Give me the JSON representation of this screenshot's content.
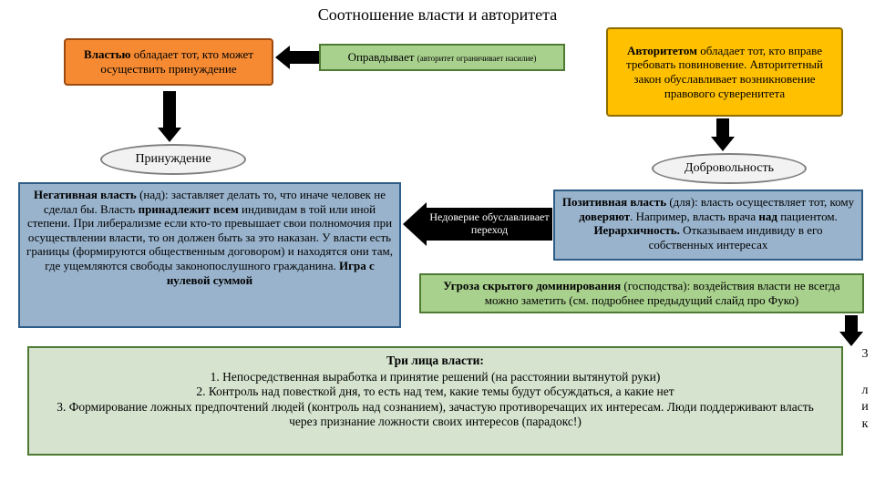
{
  "title": "Соотношение власти и авторитета",
  "colors": {
    "orange_fill": "#f58a33",
    "orange_border": "#9c4a0f",
    "yellow_fill": "#ffc000",
    "yellow_border": "#8f6b00",
    "green_fill": "#a9d18e",
    "green_border": "#4f7a34",
    "green_text_fill": "#d5e3cf",
    "blue_fill": "#99b3cc",
    "blue_border": "#2e5e87",
    "ellipse_fill": "#f2f2f2",
    "ellipse_border": "#7f7f7f",
    "arrow": "#000000"
  },
  "boxes": {
    "power": "Властью обладает тот, кто может осуществить принуждение",
    "authority": "Авторитетом обладает тот, кто вправе требовать повиновение. Авторитетный закон обуславливает возникновение правового суверенитета",
    "justify_prefix": "Оправдывает ",
    "justify_note": "(авторитет ограничивает насилие)",
    "coercion": "Принуждение",
    "voluntariness": "Добровольность",
    "negative": "Негативная власть (над): заставляет делать то, что иначе человек не сделал бы. Власть принадлежит всем индивидам в той или иной степени. При либерализме если кто-то превышает свои полномочия при осуществлении власти, то он должен быть за это наказан. У власти есть границы (формируются общественным договором) и находятся они там, где ущемляются свободы законопослушного гражданина. Игра с нулевой суммой",
    "positive": "Позитивная власть (для): власть осуществляет тот, кому доверяют. Например, власть врача над пациентом. Иерархичность. Отказываем индивиду в его собственных интересах",
    "distrust": "Недоверие обуславливает переход",
    "hidden": "Угроза скрытого доминирования (господства): воздействия власти не всегда можно заметить (см. подробнее предыдущий слайд про Фуко)",
    "three_faces_title": "Три лица власти:",
    "three_faces": [
      "Непосредственная выработка и принятие решений (на расстоянии вытянутой руки)",
      "Контроль над повесткой дня, то есть над тем, какие темы будут обсуждаться, а какие нет",
      "Формирование ложных предпочтений людей (контроль над сознанием), зачастую противоречащих их интересам. Люди поддерживают власть через признание ложности своих интересов (парадокс!)"
    ]
  },
  "sidebar": [
    "3",
    "л",
    "и",
    "к"
  ]
}
